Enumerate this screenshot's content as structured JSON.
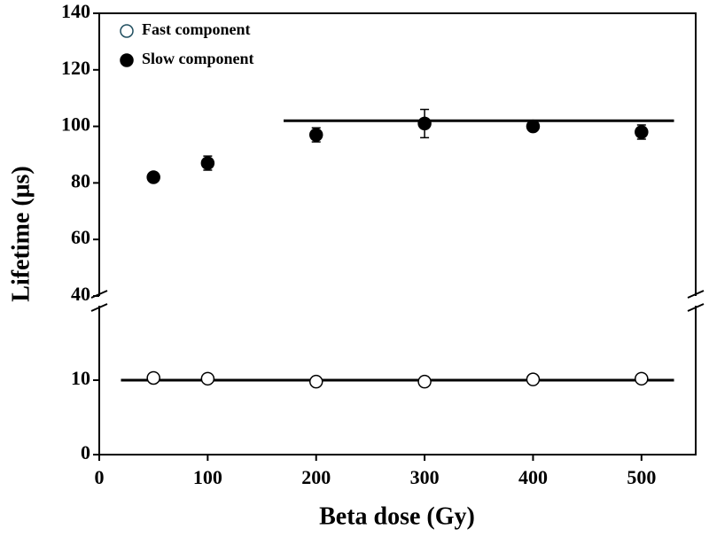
{
  "chart_data": {
    "type": "scatter",
    "xlabel": "Beta dose (Gy)",
    "ylabel": "Lifetime (μs)",
    "x": [
      50,
      100,
      200,
      300,
      400,
      500
    ],
    "xlim": [
      0,
      550
    ],
    "xticks": [
      0,
      100,
      200,
      300,
      400,
      500
    ],
    "ylim": [
      0,
      140
    ],
    "ybreak": [
      20,
      40
    ],
    "yticks": [
      0,
      10,
      40,
      60,
      80,
      100,
      120,
      140
    ],
    "legend": "upper left",
    "series": [
      {
        "name": "Fast component",
        "color": "#000000",
        "filled": false,
        "values": [
          10.3,
          10.2,
          9.8,
          9.8,
          10.1,
          10.2
        ],
        "errors": [
          0.5,
          0.5,
          0.5,
          0.5,
          0.5,
          0.5
        ],
        "fit": {
          "x": [
            20,
            530
          ],
          "value": 10
        }
      },
      {
        "name": "Slow component",
        "color": "#000000",
        "filled": true,
        "values": [
          82,
          87,
          97,
          101,
          100,
          98
        ],
        "errors": [
          1,
          2.5,
          2.5,
          5,
          1,
          2.5
        ],
        "fit": {
          "x": [
            170,
            530
          ],
          "value": 102
        }
      }
    ]
  }
}
